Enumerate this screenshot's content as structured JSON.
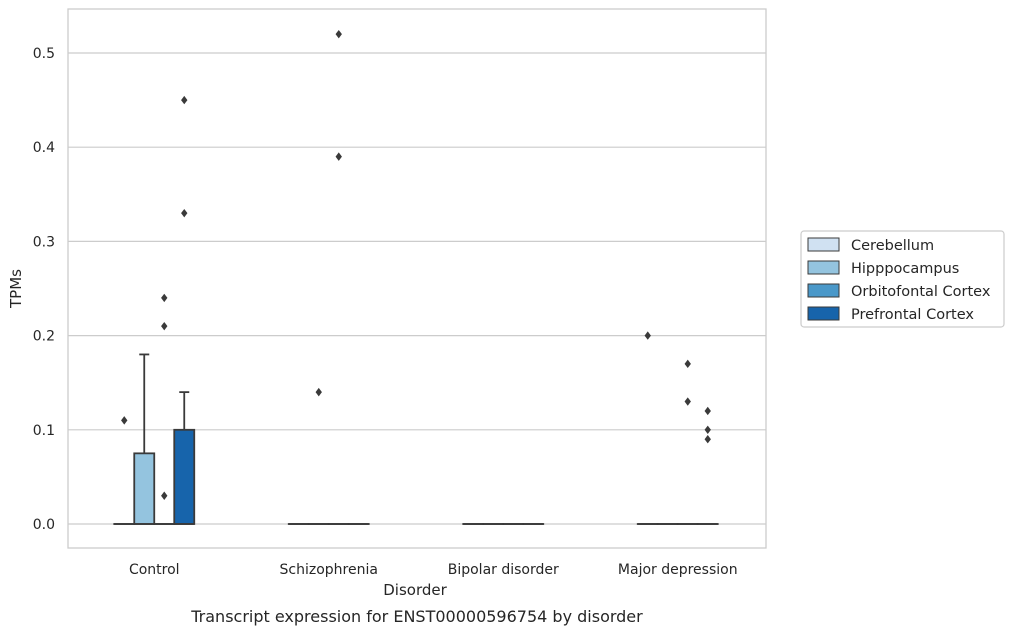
{
  "chart_data": {
    "type": "box",
    "caption": "Transcript expression for ENST00000596754 by disorder",
    "xlabel": "Disorder",
    "ylabel": "TPMs",
    "ylim": [
      -0.025,
      0.55
    ],
    "yticks": [
      0.0,
      0.1,
      0.2,
      0.3,
      0.4,
      0.5
    ],
    "ytick_labels": [
      "0.0",
      "0.1",
      "0.2",
      "0.3",
      "0.4",
      "0.5"
    ],
    "grid": "horizontal",
    "legend_position": "right",
    "categories": [
      "Control",
      "Schizophrenia",
      "Bipolar disorder",
      "Major depression"
    ],
    "series": [
      {
        "name": "Cerebellum",
        "color": "#d0e1f2",
        "boxes": [
          {
            "q1": 0,
            "median": 0,
            "q3": 0,
            "whisker_low": 0,
            "whisker_high": 0,
            "fliers": []
          },
          {
            "q1": 0,
            "median": 0,
            "q3": 0,
            "whisker_low": 0,
            "whisker_high": 0,
            "fliers": []
          },
          {
            "q1": 0,
            "median": 0,
            "q3": 0,
            "whisker_low": 0,
            "whisker_high": 0,
            "fliers": []
          },
          {
            "q1": 0,
            "median": 0,
            "q3": 0,
            "whisker_low": 0,
            "whisker_high": 0,
            "fliers": []
          }
        ]
      },
      {
        "name": "Hipppocampus",
        "color": "#94c4df",
        "boxes": [
          {
            "q1": 0,
            "median": 0,
            "q3": 0.075,
            "whisker_low": 0,
            "whisker_high": 0.18,
            "fliers": []
          },
          {
            "q1": 0,
            "median": 0,
            "q3": 0,
            "whisker_low": 0,
            "whisker_high": 0,
            "fliers": [
              0.14
            ]
          },
          {
            "q1": 0,
            "median": 0,
            "q3": 0,
            "whisker_low": 0,
            "whisker_high": 0,
            "fliers": []
          },
          {
            "q1": 0,
            "median": 0,
            "q3": 0,
            "whisker_low": 0,
            "whisker_high": 0,
            "fliers": []
          }
        ]
      },
      {
        "name": "Orbitofontal Cortex",
        "color": "#4a98c9",
        "boxes": [
          {
            "q1": 0,
            "median": 0,
            "q3": 0,
            "whisker_low": 0,
            "whisker_high": 0,
            "fliers": [
              0.03,
              0.21,
              0.24
            ]
          },
          {
            "q1": 0,
            "median": 0,
            "q3": 0,
            "whisker_low": 0,
            "whisker_high": 0,
            "fliers": [
              0.39,
              0.52
            ]
          },
          {
            "q1": 0,
            "median": 0,
            "q3": 0,
            "whisker_low": 0,
            "whisker_high": 0,
            "fliers": []
          },
          {
            "q1": 0,
            "median": 0,
            "q3": 0,
            "whisker_low": 0,
            "whisker_high": 0,
            "fliers": [
              0.13,
              0.17
            ]
          }
        ]
      },
      {
        "name": "Prefrontal Cortex",
        "color": "#1764ab",
        "boxes": [
          {
            "q1": 0,
            "median": 0,
            "q3": 0.1,
            "whisker_low": 0,
            "whisker_high": 0.14,
            "fliers": [
              0.33,
              0.45
            ]
          },
          {
            "q1": 0,
            "median": 0,
            "q3": 0,
            "whisker_low": 0,
            "whisker_high": 0,
            "fliers": []
          },
          {
            "q1": 0,
            "median": 0,
            "q3": 0,
            "whisker_low": 0,
            "whisker_high": 0,
            "fliers": []
          },
          {
            "q1": 0,
            "median": 0,
            "q3": 0,
            "whisker_low": 0,
            "whisker_high": 0,
            "fliers": [
              0.09,
              0.1,
              0.12
            ]
          }
        ]
      }
    ],
    "extra_fliers": [
      {
        "category": "Control",
        "series": "Cerebellum",
        "values": [
          0.11
        ]
      },
      {
        "category": "Major depression",
        "series": "Cerebellum",
        "values": [
          0.2
        ]
      }
    ]
  }
}
